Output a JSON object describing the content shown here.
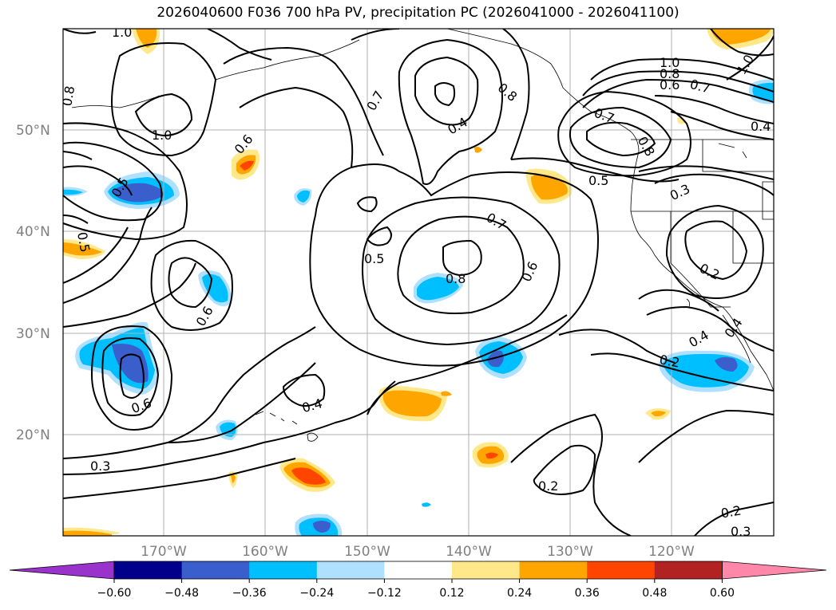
{
  "title": "2026040600 F036 700 hPa PV, precipitation PC (2026041000 - 2026041100)",
  "map": {
    "lat_labels": [
      "50°N",
      "40°N",
      "30°N",
      "20°N"
    ],
    "lon_labels": [
      "170°W",
      "160°W",
      "150°W",
      "140°W",
      "130°W",
      "120°W"
    ],
    "contour_labels": [
      "1.0",
      "0.8",
      "1.0",
      "0.6",
      "0.5",
      "0.5",
      "0.7",
      "0.6",
      "0.4",
      "0.8",
      "0.8",
      "0.7",
      "0.7",
      "0.5",
      "0.8",
      "1.0",
      "0.8",
      "0.6",
      "0.7",
      "1.0",
      "0.4",
      "0.3",
      "0.2",
      "0.5",
      "0.6",
      "0.6",
      "0.4",
      "0.3",
      "0.2",
      "0.2",
      "0.3",
      "0.2",
      "0.4",
      "0.4"
    ]
  },
  "colorbar": {
    "ticks": [
      "−0.60",
      "−0.48",
      "−0.36",
      "−0.24",
      "−0.12",
      "0.12",
      "0.24",
      "0.36",
      "0.48",
      "0.60"
    ],
    "colors": [
      "#9933cc",
      "#00008b",
      "#3a5fcd",
      "#00bfff",
      "#b0e0ff",
      "#ffffff",
      "#ffe88a",
      "#ffa500",
      "#ff4500",
      "#b22222",
      "#ff88aa"
    ]
  }
}
